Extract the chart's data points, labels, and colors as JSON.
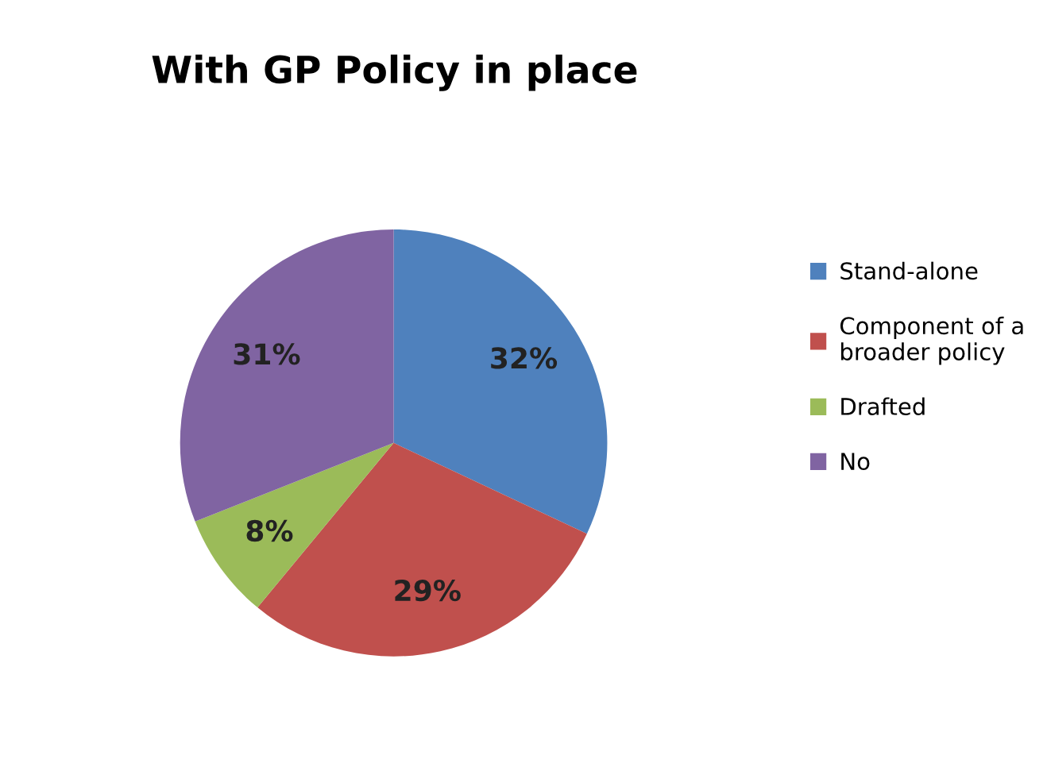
{
  "chart_data": {
    "type": "pie",
    "title": "With GP Policy in place",
    "categories": [
      "Stand-alone",
      "Component of a\nbroader policy",
      "Drafted",
      "No"
    ],
    "values": [
      32,
      29,
      8,
      31
    ],
    "value_labels": [
      "32%",
      "29%",
      "8%",
      "31%"
    ],
    "colors": [
      "#4f81bd",
      "#c0504d",
      "#9bbb59",
      "#8064a2"
    ],
    "legend": "right"
  }
}
